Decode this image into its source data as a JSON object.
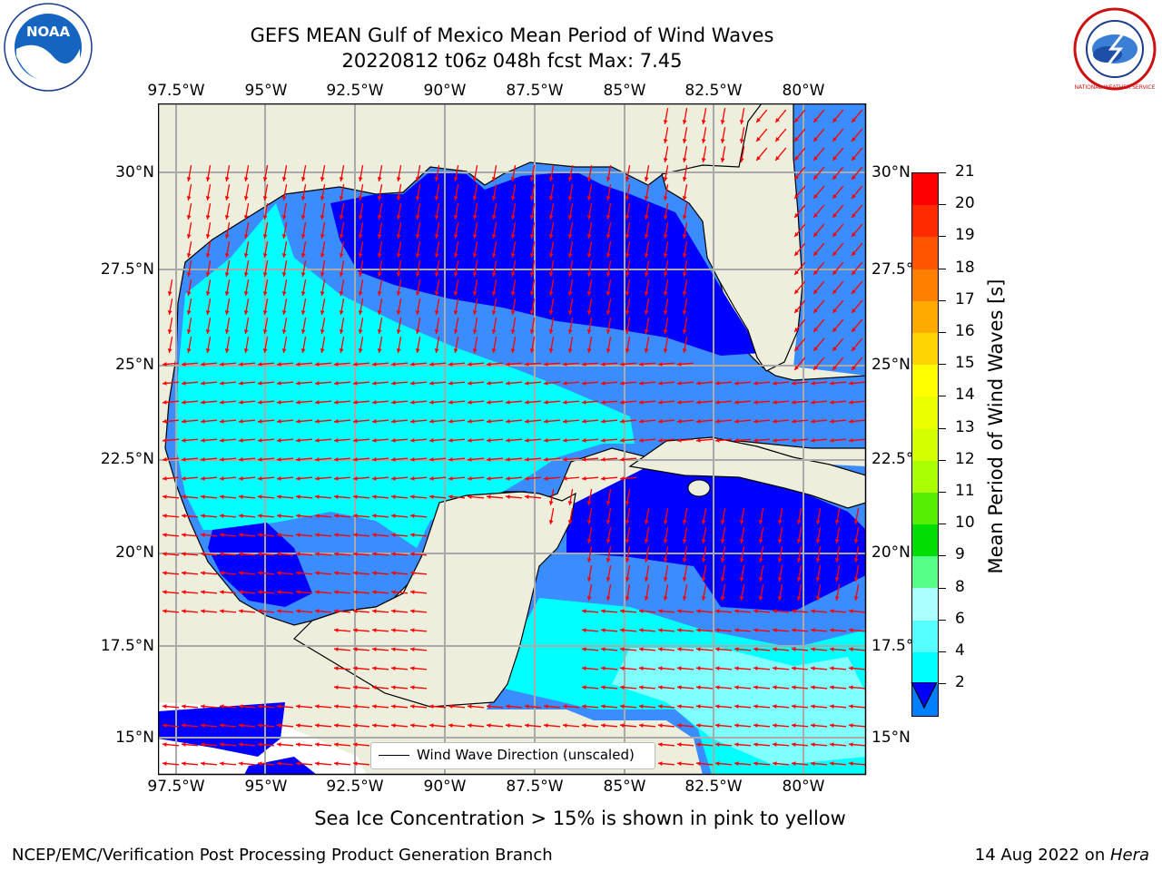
{
  "title": {
    "line1": "GEFS MEAN Gulf of Mexico Mean Period of Wind Waves",
    "line2": "20220812 t06z 048h fcst   Max: 7.45"
  },
  "map": {
    "lon_labels": [
      "97.5°W",
      "95°W",
      "92.5°W",
      "90°W",
      "87.5°W",
      "85°W",
      "82.5°W",
      "80°W"
    ],
    "lat_labels": [
      "30°N",
      "27.5°N",
      "25°N",
      "22.5°N",
      "20°N",
      "17.5°N",
      "15°N"
    ],
    "legend_label": "Wind Wave Direction (unscaled)",
    "colors": {
      "land": "#eeeedd",
      "level_2_4": "#0000ff",
      "level_4_6": "#3a8cff",
      "level_6_8": "#00ffff",
      "level_8_9": "#7fffff",
      "arrow": "#ff0000",
      "grid": "#aaaaaa"
    }
  },
  "colorbar": {
    "label": "Mean Period of Wind Waves [s]",
    "ticks": [
      "21",
      "20",
      "19",
      "18",
      "17",
      "16",
      "15",
      "14",
      "13",
      "12",
      "11",
      "10",
      "9",
      "8",
      "6",
      "4",
      "2"
    ],
    "colors": [
      "#ff0000",
      "#ff2a00",
      "#ff5500",
      "#ff8000",
      "#ffaa00",
      "#ffd400",
      "#ffff00",
      "#eaff00",
      "#d4ff00",
      "#aaff00",
      "#55ee00",
      "#00dd00",
      "#55ff88",
      "#aaffff",
      "#55ffff",
      "#00ffff",
      "#0080ff"
    ],
    "underflow_color": "#0000ff"
  },
  "note": "Sea Ice Concentration > 15% is shown in pink to yellow",
  "footer": {
    "left": "NCEP/EMC/Verification Post Processing Product Generation Branch",
    "date": "14 Aug 2022 on ",
    "host": "Hera"
  },
  "logos": {
    "left": "NOAA",
    "right": "NATIONAL WEATHER SERVICE"
  }
}
